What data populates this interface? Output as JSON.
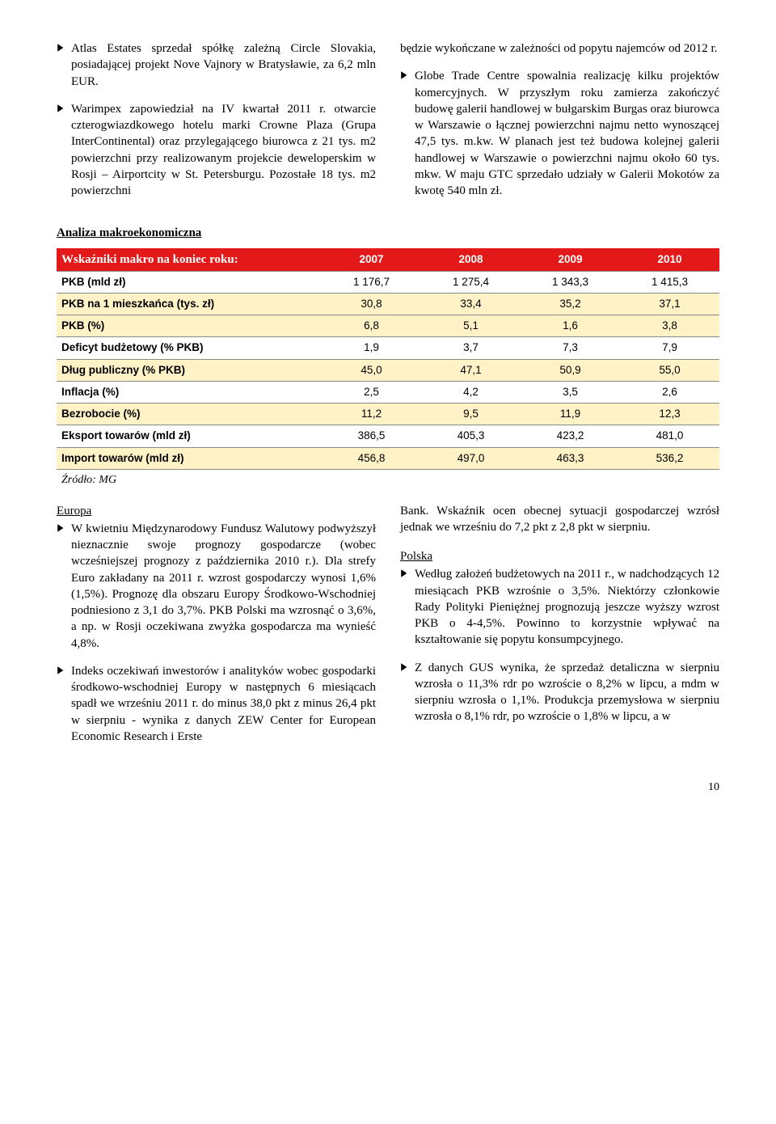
{
  "top_left_bullets": [
    "Atlas Estates sprzedał spółkę zależną Circle Slovakia, posiadającej projekt Nove Vajnory w Bratysławie, za 6,2 mln EUR.",
    "Warimpex zapowiedział na IV kwartał 2011 r. otwarcie czterogwiazdkowego hotelu marki Crowne Plaza (Grupa InterContinental) oraz przylegającego biurowca z 21 tys. m2 powierzchni przy realizowanym projekcie deweloperskim w Rosji – Airportcity w St. Petersburgu. Pozostałe 18 tys. m2 powierzchni"
  ],
  "top_right_prefix": "będzie wykończane w zależności od popytu najemców od 2012 r.",
  "top_right_bullet": "Globe Trade Centre spowalnia realizację kilku projektów komercyjnych. W przyszłym roku zamierza zakończyć budowę galerii handlowej w bułgarskim Burgas oraz biurowca w Warszawie o łącznej powierzchni najmu netto wynoszącej 47,5 tys. m.kw. W planach jest też budowa kolejnej galerii handlowej w Warszawie o powierzchni najmu około 60 tys. mkw. W maju GTC sprzedało udziały w Galerii Mokotów za kwotę 540 mln zł.",
  "analysis_heading": "Analiza makroekonomiczna",
  "table": {
    "header_label": "Wskaźniki makro na koniec roku:",
    "years": [
      "2007",
      "2008",
      "2009",
      "2010"
    ],
    "rows": [
      {
        "label": "PKB (mld zł)",
        "hl": false,
        "vals": [
          "1 176,7",
          "1 275,4",
          "1 343,3",
          "1 415,3"
        ]
      },
      {
        "label": "PKB na 1 mieszkańca (tys. zł)",
        "hl": true,
        "vals": [
          "30,8",
          "33,4",
          "35,2",
          "37,1"
        ]
      },
      {
        "label": "PKB (%)",
        "hl": true,
        "vals": [
          "6,8",
          "5,1",
          "1,6",
          "3,8"
        ]
      },
      {
        "label": "Deficyt budżetowy (% PKB)",
        "hl": false,
        "vals": [
          "1,9",
          "3,7",
          "7,3",
          "7,9"
        ]
      },
      {
        "label": "Dług publiczny (% PKB)",
        "hl": true,
        "vals": [
          "45,0",
          "47,1",
          "50,9",
          "55,0"
        ]
      },
      {
        "label": "Inflacja (%)",
        "hl": false,
        "vals": [
          "2,5",
          "4,2",
          "3,5",
          "2,6"
        ]
      },
      {
        "label": "Bezrobocie (%)",
        "hl": true,
        "vals": [
          "11,2",
          "9,5",
          "11,9",
          "12,3"
        ]
      },
      {
        "label": "Eksport towarów (mld zł)",
        "hl": false,
        "vals": [
          "386,5",
          "405,3",
          "423,2",
          "481,0"
        ]
      },
      {
        "label": "Import towarów (mld zł)",
        "hl": true,
        "vals": [
          "456,8",
          "497,0",
          "463,3",
          "536,2"
        ]
      }
    ],
    "header_bg": "#e31818",
    "highlight_bg": "#fff2c6"
  },
  "source": "Źródło: MG",
  "europa_heading": "Europa",
  "europa_bullets": [
    "W kwietniu Międzynarodowy Fundusz Walutowy podwyższył nieznacznie swoje prognozy gospodarcze (wobec wcześniejszej prognozy z października 2010 r.). Dla strefy Euro zakładany na 2011 r. wzrost gospodarczy wynosi 1,6% (1,5%). Prognozę dla obszaru Europy Środkowo-Wschodniej podniesiono z 3,1 do 3,7%. PKB Polski ma wzrosnąć o 3,6%, a np. w Rosji oczekiwana zwyżka gospodarcza ma wynieść 4,8%.",
    "Indeks oczekiwań inwestorów i analityków wobec gospodarki środkowo-wschodniej Europy w następnych 6 miesiącach spadł we wrześniu 2011 r. do minus 38,0 pkt z minus 26,4 pkt w sierpniu - wynika z danych ZEW Center for European Economic Research i Erste"
  ],
  "right_col_prefix": "Bank. Wskaźnik ocen obecnej sytuacji gospodarczej wzrósł jednak we wrześniu do 7,2 pkt z 2,8 pkt w sierpniu.",
  "polska_heading": "Polska",
  "polska_bullets": [
    "Według założeń budżetowych na 2011 r., w nadchodzących 12 miesiącach PKB wzrośnie o 3,5%. Niektórzy członkowie Rady Polityki Pieniężnej prognozują jeszcze wyższy wzrost PKB o 4-4,5%. Powinno to korzystnie wpływać na kształtowanie się popytu konsumpcyjnego.",
    "Z danych GUS wynika, że sprzedaż detaliczna w sierpniu wzrosła o 11,3% rdr po wzroście o 8,2% w lipcu, a mdm w sierpniu wzrosła o 1,1%. Produkcja przemysłowa w sierpniu wzrosła o 8,1% rdr, po wzroście o 1,8% w lipcu, a w"
  ],
  "page_number": "10"
}
